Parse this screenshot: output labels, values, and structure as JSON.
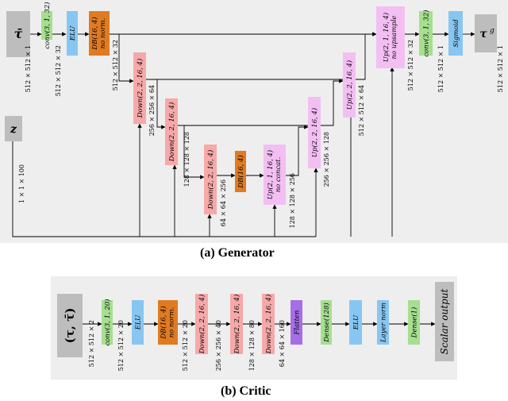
{
  "colors": {
    "input": "#bdbdbd",
    "conv": "#a6df8f",
    "elu": "#88c6f2",
    "db": "#e07b22",
    "down": "#f7a8a8",
    "up": "#f3bff3",
    "sigmoid": "#88c6f2",
    "flatten": "#a66ee6",
    "dense": "#a6df8f",
    "layernorm": "#88c6f2"
  },
  "generator": {
    "caption": "(a) Generator",
    "inputs": {
      "tau_bar": "τ̄",
      "z": "z",
      "tau_g": "τ",
      "tau_g_sup": "g"
    },
    "blocks": {
      "conv_in": "conv(3, 1, 32)",
      "elu": "ELU",
      "db1": "DB(16, 4)",
      "db1_note": "no norm.",
      "down1": "Down(2, 2, 16, 4)",
      "down2": "Down(2, 2, 16, 4)",
      "down3": "Down(2, 2, 16, 4)",
      "db_mid": "DB(16, 4)",
      "up_nc": "Up(2, 1, 16, 4)",
      "up_nc_note": "no concat.",
      "up3": "Up(2, 2, 16, 4)",
      "up2": "Up(2, 2, 16, 4)",
      "up1": "Up(2, 1, 16, 4)",
      "up1_note": "no upsample",
      "conv_out": "conv(3, 1, 32)",
      "sigmoid": "Sigmoid"
    },
    "dims": {
      "d_tau_bar": "512 × 512 × 1",
      "d_conv": "512 × 512 × 32",
      "d_db1": "512 × 512 × 32",
      "d_z": "1 × 1 × 100",
      "d_down1": "256 × 256 × 64",
      "d_down2": "128 × 128 × 128",
      "d_down3": "64 × 64 × 256",
      "d_up_nc": "128 × 128 × 256",
      "d_up3": "256 × 256 × 128",
      "d_up2": "512 × 512 × 64",
      "d_up1": "512 × 512 × 32",
      "d_conv_out": "512 × 512 × 1",
      "d_out": "512 × 512 × 1"
    }
  },
  "critic": {
    "caption": "(b) Critic",
    "input": "(τ, τ̄)",
    "output": "Scalar output",
    "blocks": {
      "conv": "conv(3, 1, 20)",
      "elu1": "ELU",
      "db": "DB(16, 4)",
      "db_note": "no norm.",
      "down1": "Down(2, 2, 16, 4)",
      "down2": "Down(2, 2, 16, 4)",
      "down3": "Down(2, 2, 16, 4)",
      "flatten": "Flatten",
      "dense1": "Dense(128)",
      "elu2": "ELU",
      "layernorm": "Layer norm",
      "dense2": "Dense(1)"
    },
    "dims": {
      "d_in": "512 × 512 × 2",
      "d_conv": "512 × 512 × 20",
      "d_db": "512 × 512 × 20",
      "d_down1": "256 × 256 × 40",
      "d_down2": "128 × 128 × 80",
      "d_down3": "64 × 64 × 160"
    }
  }
}
